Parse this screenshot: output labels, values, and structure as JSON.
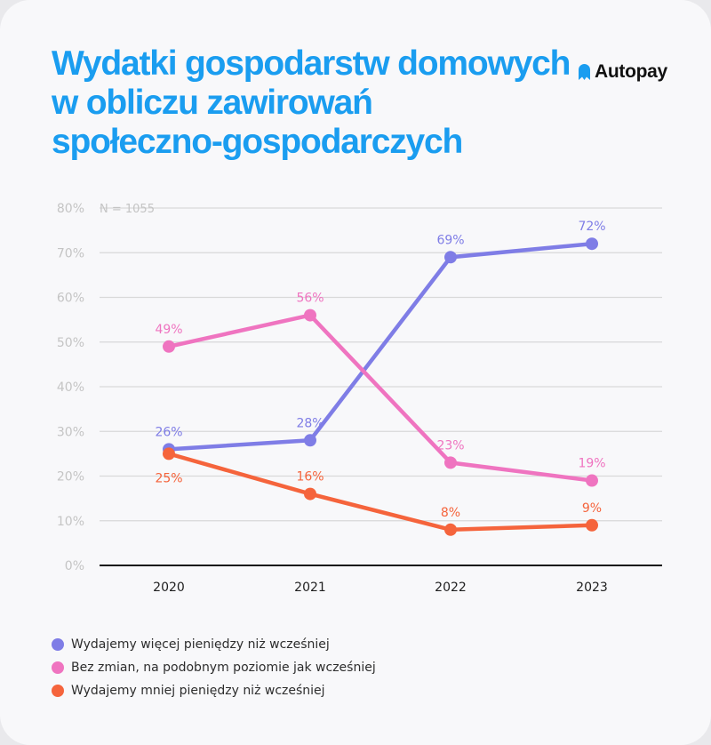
{
  "title_lines": [
    "Wydatki gospodarstw domowych",
    "w obliczu zawirowań",
    "społeczno-gospodarczych"
  ],
  "brand": {
    "name": "Autopay",
    "icon": "autopay-logo-icon"
  },
  "sample_note": "N = 1055",
  "colors": {
    "title": "#1a9df0",
    "more": "#7f7de6",
    "same": "#ef74c0",
    "less": "#f5643c",
    "grid": "#d9d9d9",
    "tick": "#c4c4c4",
    "axis": "#111111"
  },
  "chart_data": {
    "type": "line",
    "categories": [
      "2020",
      "2021",
      "2022",
      "2023"
    ],
    "ylim": [
      0,
      80
    ],
    "yticks": [
      "0%",
      "10%",
      "20%",
      "30%",
      "40%",
      "50%",
      "60%",
      "70%",
      "80%"
    ],
    "grid": true,
    "legend_position": "bottom",
    "series": [
      {
        "name": "Wydajemy więcej pieniędzy niż wcześniej",
        "color": "#7f7de6",
        "values": [
          26,
          28,
          69,
          72
        ],
        "labels": [
          "26%",
          "28%",
          "69%",
          "72%"
        ]
      },
      {
        "name": "Bez zmian, na podobnym poziomie jak wcześniej",
        "color": "#ef74c0",
        "values": [
          49,
          56,
          23,
          19
        ],
        "labels": [
          "49%",
          "56%",
          "23%",
          "19%"
        ]
      },
      {
        "name": "Wydajemy mniej pieniędzy niż wcześniej",
        "color": "#f5643c",
        "values": [
          25,
          16,
          8,
          9
        ],
        "labels": [
          "25%",
          "16%",
          "8%",
          "9%"
        ]
      }
    ]
  }
}
